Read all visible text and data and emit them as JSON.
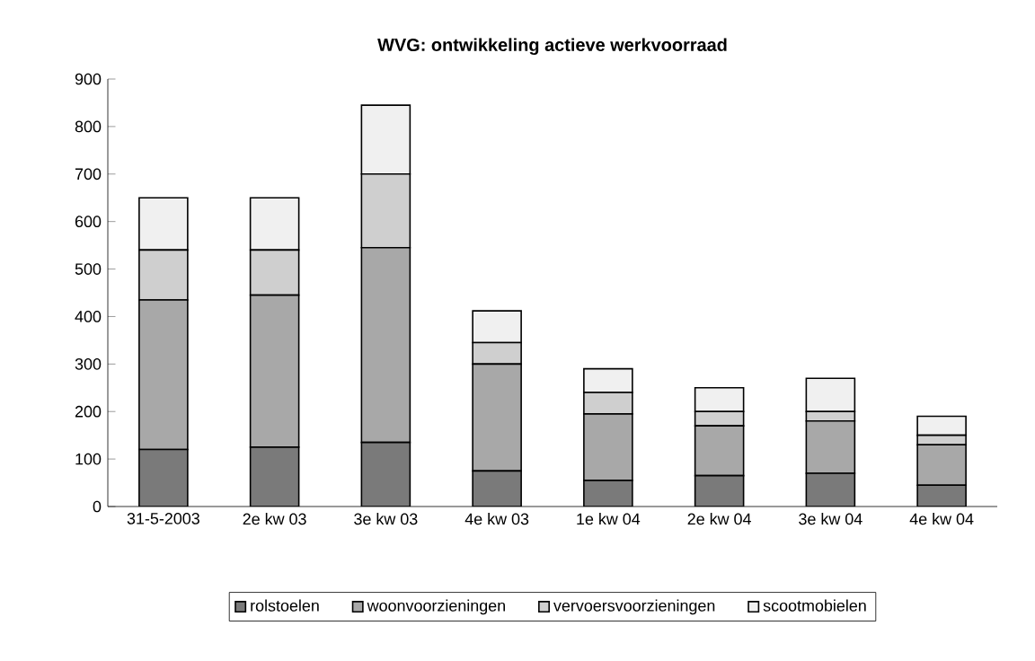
{
  "chart_data": {
    "type": "bar",
    "title": "WVG: ontwikkeling actieve werkvoorraad",
    "stacked": true,
    "categories": [
      "31-5-2003",
      "2e kw 03",
      "3e kw 03",
      "4e kw 03",
      "1e kw 04",
      "2e kw 04",
      "3e kw 04",
      "4e kw 04"
    ],
    "series": [
      {
        "name": "rolstoelen",
        "color": "#7a7a7a",
        "values": [
          120,
          125,
          135,
          75,
          55,
          65,
          70,
          45
        ]
      },
      {
        "name": "woonvoorzieningen",
        "color": "#a8a8a8",
        "values": [
          315,
          320,
          410,
          225,
          140,
          105,
          110,
          85
        ]
      },
      {
        "name": "vervoersvoorzieningen",
        "color": "#cfcfcf",
        "values": [
          105,
          95,
          155,
          45,
          45,
          30,
          20,
          20
        ]
      },
      {
        "name": "scootmobielen",
        "color": "#f0f0f0",
        "values": [
          110,
          110,
          145,
          67,
          50,
          50,
          70,
          40
        ]
      }
    ],
    "ylim": [
      0,
      900
    ],
    "yticks": [
      0,
      100,
      200,
      300,
      400,
      500,
      600,
      700,
      800,
      900
    ],
    "grid": false,
    "legend": "bottom"
  }
}
